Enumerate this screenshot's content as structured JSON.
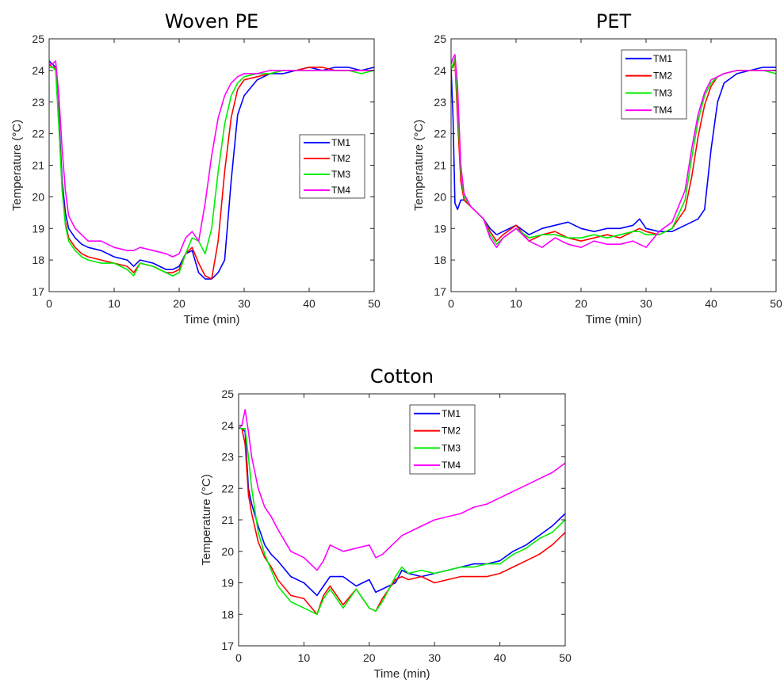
{
  "chart_data": [
    {
      "type": "line",
      "title": "Woven PE",
      "xlabel": "Time (min)",
      "ylabel": "Temperature (°C)",
      "xlim": [
        0,
        50
      ],
      "ylim": [
        17,
        25
      ],
      "xticks": [
        0,
        10,
        20,
        30,
        40,
        50
      ],
      "yticks": [
        17,
        18,
        19,
        20,
        21,
        22,
        23,
        24,
        25
      ],
      "legend_position": "right-middle",
      "grid": false,
      "series": [
        {
          "name": "TM1",
          "color": "#0000ff",
          "x": [
            0,
            0.5,
            1,
            1.5,
            2,
            2.5,
            3,
            4,
            5,
            6,
            8,
            10,
            12,
            13,
            14,
            16,
            18,
            19,
            20,
            21,
            22,
            23,
            24,
            25,
            26,
            27,
            28,
            29,
            30,
            32,
            34,
            36,
            38,
            40,
            42,
            44,
            46,
            48,
            50
          ],
          "y": [
            24.3,
            24.2,
            24.1,
            22.5,
            20.5,
            19.5,
            19.0,
            18.7,
            18.5,
            18.4,
            18.3,
            18.1,
            18.0,
            17.8,
            18.0,
            17.9,
            17.7,
            17.7,
            17.8,
            18.2,
            18.3,
            17.6,
            17.4,
            17.4,
            17.6,
            18.0,
            20.5,
            22.6,
            23.2,
            23.7,
            23.9,
            23.9,
            24.0,
            24.1,
            24.0,
            24.1,
            24.1,
            24.0,
            24.1
          ]
        },
        {
          "name": "TM2",
          "color": "#ff0000",
          "x": [
            0,
            0.5,
            1,
            1.5,
            2,
            2.5,
            3,
            4,
            5,
            6,
            8,
            10,
            12,
            13,
            14,
            16,
            18,
            19,
            20,
            21,
            22,
            23,
            24,
            25,
            26,
            27,
            28,
            29,
            30,
            32,
            34,
            36,
            38,
            40,
            42,
            44,
            46,
            48,
            50
          ],
          "y": [
            24.2,
            24.1,
            24.1,
            22.3,
            20.3,
            19.2,
            18.7,
            18.4,
            18.2,
            18.1,
            18.0,
            17.9,
            17.8,
            17.6,
            17.9,
            17.8,
            17.6,
            17.6,
            17.7,
            18.2,
            18.4,
            17.9,
            17.5,
            17.4,
            18.6,
            20.8,
            22.5,
            23.4,
            23.7,
            23.8,
            23.9,
            24.0,
            24.0,
            24.1,
            24.1,
            24.0,
            24.0,
            24.0,
            24.0
          ]
        },
        {
          "name": "TM3",
          "color": "#00ee00",
          "x": [
            0,
            0.5,
            1,
            1.5,
            2,
            2.5,
            3,
            4,
            5,
            6,
            8,
            10,
            12,
            13,
            14,
            16,
            18,
            19,
            20,
            21,
            22,
            23,
            24,
            25,
            26,
            27,
            28,
            29,
            30,
            32,
            34,
            36,
            38,
            40,
            42,
            44,
            46,
            48,
            50
          ],
          "y": [
            24.1,
            24.1,
            24.0,
            22.2,
            20.2,
            19.1,
            18.6,
            18.3,
            18.1,
            18.0,
            17.9,
            17.9,
            17.7,
            17.5,
            17.9,
            17.8,
            17.6,
            17.5,
            17.6,
            18.2,
            18.7,
            18.6,
            18.2,
            19.0,
            20.8,
            22.3,
            23.2,
            23.6,
            23.8,
            23.9,
            23.9,
            24.0,
            24.0,
            24.0,
            24.0,
            24.0,
            24.0,
            23.9,
            24.0
          ]
        },
        {
          "name": "TM4",
          "color": "#ff00ff",
          "x": [
            0,
            0.5,
            1,
            1.5,
            2,
            2.5,
            3,
            4,
            5,
            6,
            8,
            10,
            12,
            13,
            14,
            16,
            18,
            19,
            20,
            21,
            22,
            23,
            24,
            25,
            26,
            27,
            28,
            29,
            30,
            32,
            34,
            36,
            38,
            40,
            42,
            44,
            46,
            48,
            50
          ],
          "y": [
            24.2,
            24.2,
            24.3,
            23.2,
            21.5,
            20.2,
            19.4,
            19.0,
            18.8,
            18.6,
            18.6,
            18.4,
            18.3,
            18.3,
            18.4,
            18.3,
            18.2,
            18.1,
            18.2,
            18.7,
            18.9,
            18.6,
            19.8,
            21.3,
            22.5,
            23.2,
            23.6,
            23.8,
            23.9,
            23.9,
            24.0,
            24.0,
            24.0,
            24.0,
            24.0,
            24.0,
            24.0,
            24.0,
            24.0
          ]
        }
      ]
    },
    {
      "type": "line",
      "title": "PET",
      "xlabel": "Time (min)",
      "ylabel": "Temperature (°C)",
      "xlim": [
        0,
        50
      ],
      "ylim": [
        17,
        25
      ],
      "xticks": [
        0,
        10,
        20,
        30,
        40,
        50
      ],
      "yticks": [
        17,
        18,
        19,
        20,
        21,
        22,
        23,
        24,
        25
      ],
      "legend_position": "top-middle",
      "grid": false,
      "series": [
        {
          "name": "TM1",
          "color": "#0000ff",
          "x": [
            0,
            0.3,
            0.6,
            1,
            1.5,
            2,
            3,
            4,
            5,
            6,
            7,
            8,
            10,
            12,
            14,
            16,
            18,
            20,
            22,
            24,
            26,
            28,
            29,
            30,
            32,
            34,
            36,
            37,
            38,
            39,
            40,
            41,
            42,
            44,
            46,
            48,
            50
          ],
          "y": [
            24.1,
            22.5,
            19.8,
            19.6,
            19.9,
            19.9,
            19.7,
            19.5,
            19.3,
            19.0,
            18.8,
            18.9,
            19.1,
            18.8,
            19.0,
            19.1,
            19.2,
            19.0,
            18.9,
            19.0,
            19.0,
            19.1,
            19.3,
            19.0,
            18.9,
            18.9,
            19.1,
            19.2,
            19.3,
            19.6,
            21.5,
            23.0,
            23.6,
            23.9,
            24.0,
            24.1,
            24.1
          ]
        },
        {
          "name": "TM2",
          "color": "#ff0000",
          "x": [
            0,
            0.3,
            0.6,
            1,
            1.5,
            2,
            3,
            4,
            5,
            6,
            7,
            8,
            10,
            12,
            14,
            16,
            18,
            20,
            22,
            24,
            26,
            28,
            29,
            30,
            32,
            34,
            36,
            37,
            38,
            39,
            40,
            41,
            42,
            44,
            46,
            48,
            50
          ],
          "y": [
            24.1,
            24.1,
            24.3,
            22.5,
            20.5,
            19.9,
            19.7,
            19.5,
            19.3,
            18.9,
            18.6,
            18.8,
            19.1,
            18.6,
            18.8,
            18.9,
            18.7,
            18.6,
            18.7,
            18.8,
            18.7,
            18.9,
            19.0,
            18.9,
            18.8,
            19.0,
            19.6,
            20.6,
            21.9,
            22.9,
            23.5,
            23.8,
            23.9,
            24.0,
            24.0,
            24.0,
            24.0
          ]
        },
        {
          "name": "TM3",
          "color": "#00ee00",
          "x": [
            0,
            0.3,
            0.6,
            1,
            1.5,
            2,
            3,
            4,
            5,
            6,
            7,
            8,
            10,
            12,
            14,
            16,
            18,
            20,
            22,
            24,
            26,
            28,
            29,
            30,
            32,
            34,
            36,
            37,
            38,
            39,
            40,
            41,
            42,
            44,
            46,
            48,
            50
          ],
          "y": [
            24.0,
            24.2,
            24.4,
            23.0,
            20.8,
            20.0,
            19.7,
            19.5,
            19.3,
            18.8,
            18.5,
            18.7,
            19.0,
            18.7,
            18.8,
            18.8,
            18.7,
            18.7,
            18.8,
            18.7,
            18.8,
            18.9,
            18.9,
            18.8,
            18.8,
            19.0,
            19.9,
            21.2,
            22.4,
            23.2,
            23.6,
            23.8,
            23.9,
            24.0,
            24.0,
            24.0,
            23.9
          ]
        },
        {
          "name": "TM4",
          "color": "#ff00ff",
          "x": [
            0,
            0.3,
            0.6,
            1,
            1.5,
            2,
            3,
            4,
            5,
            6,
            7,
            8,
            10,
            12,
            14,
            16,
            18,
            20,
            22,
            24,
            26,
            28,
            29,
            30,
            32,
            34,
            36,
            37,
            38,
            39,
            40,
            41,
            42,
            44,
            46,
            48,
            50
          ],
          "y": [
            24.2,
            24.4,
            24.5,
            23.5,
            21.0,
            20.1,
            19.7,
            19.5,
            19.3,
            18.7,
            18.4,
            18.7,
            19.0,
            18.6,
            18.4,
            18.7,
            18.5,
            18.4,
            18.6,
            18.5,
            18.5,
            18.6,
            18.5,
            18.4,
            18.9,
            19.2,
            20.2,
            21.5,
            22.6,
            23.3,
            23.7,
            23.8,
            23.9,
            24.0,
            24.0,
            24.0,
            24.0
          ]
        }
      ]
    },
    {
      "type": "line",
      "title": "Cotton",
      "xlabel": "Time (min)",
      "ylabel": "Temperature (°C)",
      "xlim": [
        0,
        50
      ],
      "ylim": [
        17,
        25
      ],
      "xticks": [
        0,
        10,
        20,
        30,
        40,
        50
      ],
      "yticks": [
        17,
        18,
        19,
        20,
        21,
        22,
        23,
        24,
        25
      ],
      "legend_position": "top-middle",
      "grid": false,
      "series": [
        {
          "name": "TM1",
          "color": "#0000ff",
          "x": [
            0,
            0.5,
            1,
            1.5,
            2,
            3,
            4,
            5,
            6,
            8,
            10,
            12,
            13,
            14,
            16,
            18,
            20,
            21,
            22,
            24,
            25,
            26,
            28,
            30,
            32,
            34,
            36,
            38,
            40,
            42,
            44,
            46,
            48,
            50
          ],
          "y": [
            23.9,
            23.9,
            23.8,
            22.0,
            21.5,
            20.8,
            20.2,
            19.9,
            19.7,
            19.2,
            19.0,
            18.6,
            18.9,
            19.2,
            19.2,
            18.9,
            19.1,
            18.7,
            18.8,
            19.0,
            19.4,
            19.3,
            19.2,
            19.3,
            19.4,
            19.5,
            19.6,
            19.6,
            19.7,
            20.0,
            20.2,
            20.5,
            20.8,
            21.2
          ]
        },
        {
          "name": "TM2",
          "color": "#ff0000",
          "x": [
            0,
            0.5,
            1,
            1.5,
            2,
            3,
            4,
            5,
            6,
            8,
            10,
            12,
            13,
            14,
            16,
            18,
            20,
            21,
            22,
            24,
            25,
            26,
            28,
            30,
            32,
            34,
            36,
            38,
            40,
            42,
            44,
            46,
            48,
            50
          ],
          "y": [
            23.9,
            23.9,
            23.4,
            21.8,
            21.2,
            20.3,
            19.8,
            19.5,
            19.1,
            18.6,
            18.5,
            18.0,
            18.6,
            18.9,
            18.3,
            18.8,
            18.2,
            18.1,
            18.5,
            19.1,
            19.2,
            19.1,
            19.2,
            19.0,
            19.1,
            19.2,
            19.2,
            19.2,
            19.3,
            19.5,
            19.7,
            19.9,
            20.2,
            20.6
          ]
        },
        {
          "name": "TM3",
          "color": "#00ee00",
          "x": [
            0,
            0.5,
            1,
            1.5,
            2,
            3,
            4,
            5,
            6,
            8,
            10,
            12,
            13,
            14,
            16,
            18,
            20,
            21,
            22,
            24,
            25,
            26,
            28,
            30,
            32,
            34,
            36,
            38,
            40,
            42,
            44,
            46,
            48,
            50
          ],
          "y": [
            23.9,
            23.9,
            23.9,
            23.0,
            22.0,
            20.6,
            19.9,
            19.4,
            18.9,
            18.4,
            18.2,
            18.0,
            18.5,
            18.8,
            18.2,
            18.8,
            18.2,
            18.1,
            18.4,
            19.2,
            19.5,
            19.3,
            19.4,
            19.3,
            19.4,
            19.5,
            19.5,
            19.6,
            19.6,
            19.9,
            20.1,
            20.4,
            20.6,
            21.0
          ]
        },
        {
          "name": "TM4",
          "color": "#ff00ff",
          "x": [
            0,
            0.5,
            1,
            1.5,
            2,
            3,
            4,
            5,
            6,
            8,
            10,
            12,
            13,
            14,
            16,
            18,
            20,
            21,
            22,
            24,
            25,
            26,
            28,
            30,
            32,
            34,
            36,
            38,
            40,
            42,
            44,
            46,
            48,
            50
          ],
          "y": [
            23.9,
            24.0,
            24.5,
            23.8,
            23.0,
            22.0,
            21.4,
            21.1,
            20.7,
            20.0,
            19.8,
            19.4,
            19.7,
            20.2,
            20.0,
            20.1,
            20.2,
            19.8,
            19.9,
            20.3,
            20.5,
            20.6,
            20.8,
            21.0,
            21.1,
            21.2,
            21.4,
            21.5,
            21.7,
            21.9,
            22.1,
            22.3,
            22.5,
            22.8
          ]
        }
      ]
    }
  ]
}
